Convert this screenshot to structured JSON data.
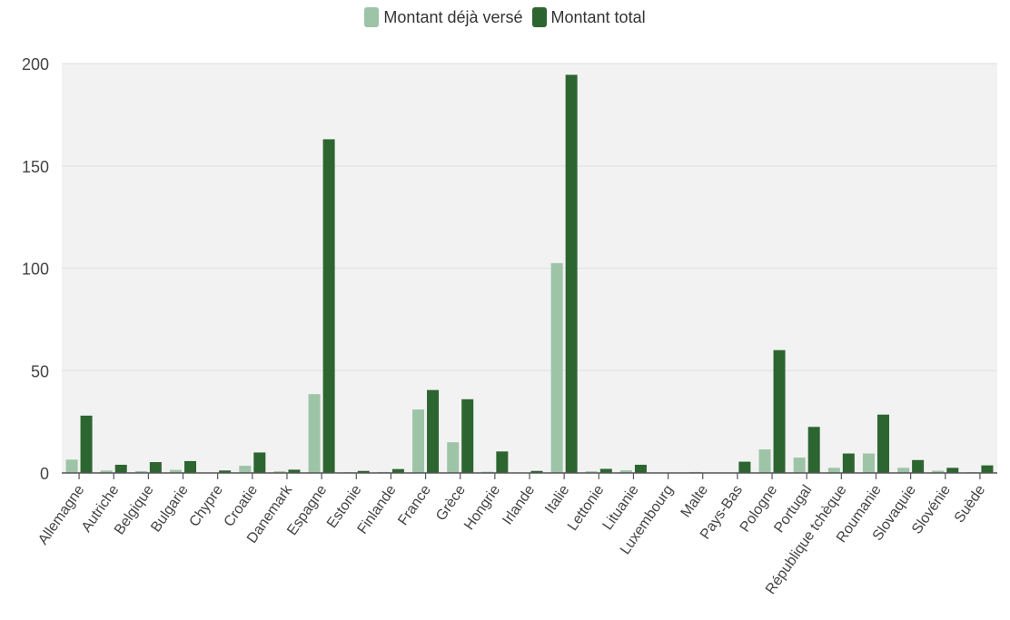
{
  "chart_data": {
    "type": "bar",
    "categories": [
      "Allemagne",
      "Autriche",
      "Belgique",
      "Bulgarie",
      "Chypre",
      "Croatie",
      "Danemark",
      "Espagne",
      "Estonie",
      "Finlande",
      "France",
      "Grèce",
      "Hongrie",
      "Irlande",
      "Italie",
      "Lettonie",
      "Lituanie",
      "Luxembourg",
      "Malte",
      "Pays-Bas",
      "Pologne",
      "Portugal",
      "République tchèque",
      "Roumanie",
      "Slovaquie",
      "Slovénie",
      "Suède"
    ],
    "series": [
      {
        "name": "Montant déjà versé",
        "color": "#9dc4a7",
        "values": [
          6.5,
          1.2,
          0.9,
          1.5,
          0.2,
          3.5,
          0.8,
          38.5,
          0.4,
          0.5,
          31,
          15,
          0.6,
          0.2,
          102.5,
          0.8,
          1.3,
          0,
          0.5,
          0.2,
          11.5,
          7.5,
          2.5,
          9.5,
          2.5,
          1.1,
          0.4
        ]
      },
      {
        "name": "Montant total",
        "color": "#2d6530",
        "values": [
          28,
          4,
          5.3,
          5.8,
          1.2,
          10,
          1.6,
          163,
          1,
          1.9,
          40.5,
          36,
          10.5,
          1,
          194.5,
          2,
          4,
          0,
          0,
          5.5,
          60,
          22.5,
          9.5,
          28.5,
          6.3,
          2.5,
          3.7
        ]
      }
    ],
    "y_ticks": [
      0,
      50,
      100,
      150,
      200
    ],
    "ylim": [
      0,
      200
    ],
    "grid": true,
    "legend_position": "top-center",
    "background": "#f2f2f2"
  }
}
